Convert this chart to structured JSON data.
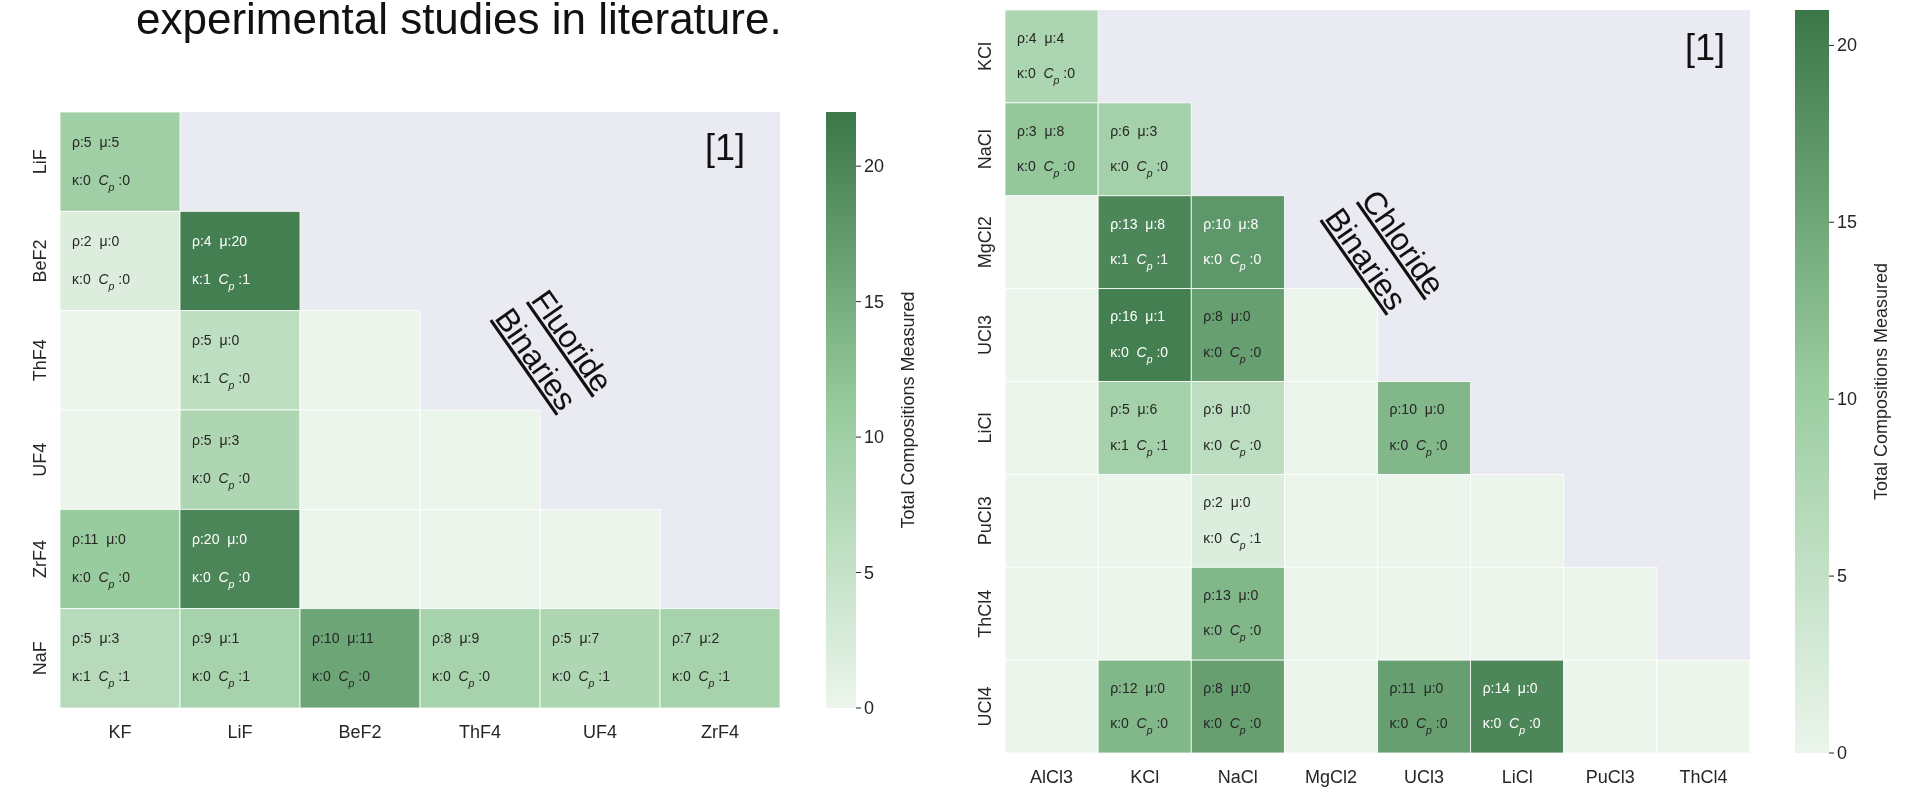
{
  "chart_data": [
    {
      "type": "heatmap",
      "title": "experimental studies in literature.",
      "clabel": "Total Compositions Measured",
      "clim": [
        0,
        22
      ],
      "cticks": [
        0,
        5,
        10,
        15,
        20
      ],
      "annotations": [
        "[1]",
        "Fluoride\nBinaries"
      ],
      "categories": [
        "KF",
        "LiF",
        "BeF2",
        "ThF4",
        "UF4",
        "ZrF4"
      ],
      "y_categories": [
        "LiF",
        "BeF2",
        "ThF4",
        "UF4",
        "ZrF4",
        "NaF"
      ],
      "cells": [
        [
          10,
          null,
          null,
          null,
          null,
          null
        ],
        [
          2,
          21,
          null,
          null,
          null,
          null
        ],
        [
          0,
          6,
          0,
          null,
          null,
          null
        ],
        [
          0,
          8,
          0,
          0,
          null,
          null
        ],
        [
          11,
          20,
          0,
          0,
          0,
          null
        ],
        [
          7,
          9,
          16,
          9,
          8,
          9
        ]
      ],
      "cell_labels": [
        [
          "ρ:5 μ:5\nκ:0 C$_{p}$:0",
          null,
          null,
          null,
          null,
          null
        ],
        [
          "ρ:2 μ:0\nκ:0 C$_{p}$:0",
          "ρ:4 μ:20\nκ:1 C$_{p}$:1",
          null,
          null,
          null,
          null
        ],
        [
          null,
          "ρ:5 μ:0\nκ:1 C$_{p}$:0",
          null,
          null,
          null,
          null
        ],
        [
          null,
          "ρ:5 μ:3\nκ:0 C$_{p}$:0",
          null,
          null,
          null,
          null
        ],
        [
          "ρ:11 μ:0\nκ:0 C$_{p}$:0",
          "ρ:20 μ:0\nκ:0 C$_{p}$:0",
          null,
          null,
          null,
          null
        ],
        [
          "ρ:5 μ:3\nκ:1 C$_{p}$:1",
          "ρ:9 μ:1\nκ:0 C$_{p}$:1",
          "ρ:10 μ:11\nκ:0 C$_{p}$:0",
          "ρ:8 μ:9\nκ:0 C$_{p}$:0",
          "ρ:5 μ:7\nκ:0 C$_{p}$:1",
          "ρ:7 μ:2\nκ:0 C$_{p}$:1"
        ]
      ]
    },
    {
      "type": "heatmap",
      "clabel": "Total Compositions Measured",
      "clim": [
        0,
        21
      ],
      "cticks": [
        0,
        5,
        10,
        15,
        20
      ],
      "annotations": [
        "[1]",
        "Chloride\nBinaries"
      ],
      "categories": [
        "AlCl3",
        "KCl",
        "NaCl",
        "MgCl2",
        "UCl3",
        "LiCl",
        "PuCl3",
        "ThCl4"
      ],
      "y_categories": [
        "KCl",
        "NaCl",
        "MgCl2",
        "UCl3",
        "LiCl",
        "PuCl3",
        "ThCl4",
        "UCl4"
      ],
      "cells": [
        [
          8,
          null,
          null,
          null,
          null,
          null,
          null,
          null
        ],
        [
          11,
          9,
          null,
          null,
          null,
          null,
          null,
          null
        ],
        [
          0,
          19,
          17,
          null,
          null,
          null,
          null,
          null
        ],
        [
          0,
          20,
          16,
          0,
          null,
          null,
          null,
          null
        ],
        [
          0,
          9,
          6,
          0,
          13,
          null,
          null,
          null
        ],
        [
          0,
          0,
          2,
          0,
          0,
          0,
          null,
          null
        ],
        [
          0,
          0,
          13,
          0,
          0,
          0,
          0,
          null
        ],
        [
          0,
          13,
          16,
          0,
          16,
          19,
          0,
          0
        ]
      ],
      "cell_labels": [
        [
          "ρ:4 μ:4\nκ:0 C$_{p}$:0",
          null,
          null,
          null,
          null,
          null,
          null,
          null
        ],
        [
          "ρ:3 μ:8\nκ:0 C$_{p}$:0",
          "ρ:6 μ:3\nκ:0 C$_{p}$:0",
          null,
          null,
          null,
          null,
          null,
          null
        ],
        [
          null,
          "ρ:13 μ:8\nκ:1 C$_{p}$:1",
          "ρ:10 μ:8\nκ:0 C$_{p}$:0",
          null,
          null,
          null,
          null,
          null
        ],
        [
          null,
          "ρ:16 μ:1\nκ:0 C$_{p}$:0",
          "ρ:8 μ:0\nκ:0 C$_{p}$:0",
          null,
          null,
          null,
          null,
          null
        ],
        [
          null,
          "ρ:5 μ:6\nκ:1 C$_{p}$:1",
          "ρ:6 μ:0\nκ:0 C$_{p}$:0",
          null,
          "ρ:10 μ:0\nκ:0 C$_{p}$:0",
          null,
          null,
          null
        ],
        [
          null,
          null,
          "ρ:2 μ:0\nκ:0 C$_{p}$:1",
          null,
          null,
          null,
          null,
          null
        ],
        [
          null,
          null,
          "ρ:13 μ:0\nκ:0 C$_{p}$:0",
          null,
          null,
          null,
          null,
          null
        ],
        [
          null,
          "ρ:12 μ:0\nκ:0 C$_{p}$:0",
          "ρ:8 μ:0\nκ:0 C$_{p}$:0",
          null,
          "ρ:11 μ:0\nκ:0 C$_{p}$:0",
          "ρ:14 μ:0\nκ:0 C$_{p}$:0",
          null,
          null
        ]
      ]
    }
  ]
}
